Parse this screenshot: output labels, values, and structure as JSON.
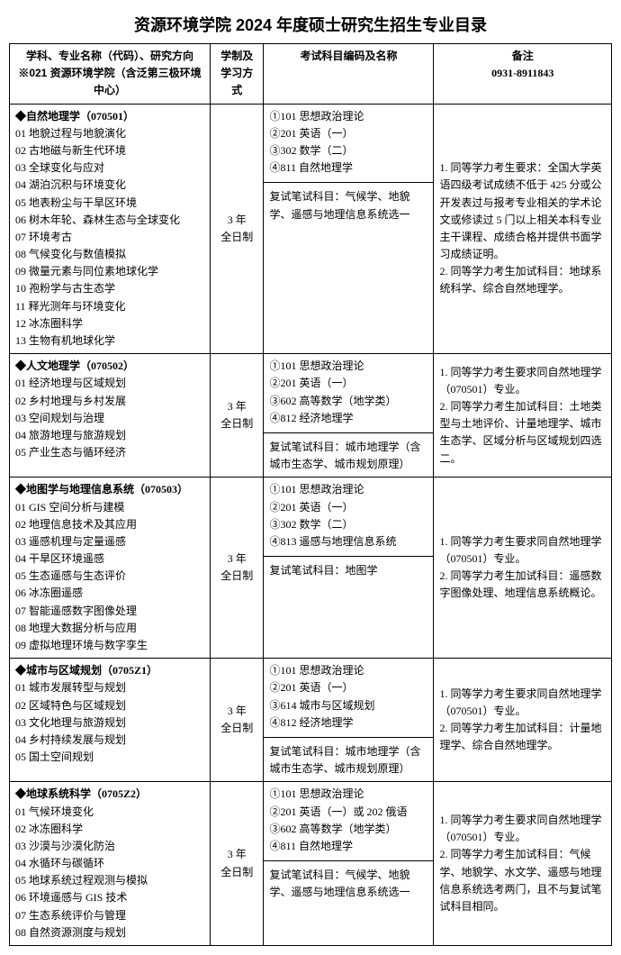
{
  "title": "资源环境学院 2024 年度硕士研究生招生专业目录",
  "header": {
    "col1a": "学科、专业名称（代码）、研究方向",
    "col1b": "※021 资源环境学院（含泛第三极环境中心）",
    "col2": "学制及学习方式",
    "col3": "考试科目编码及名称",
    "col4a": "备注",
    "col4b": "0931-8911843"
  },
  "rows": [
    {
      "name": "自然地理学（070501）",
      "dirs": [
        "01 地貌过程与地貌演化",
        "02 古地磁与新生代环境",
        "03 全球变化与应对",
        "04 湖泊沉积与环境变化",
        "05 地表粉尘与干旱区环境",
        "06 树木年轮、森林生态与全球变化",
        "07 环境考古",
        "08 气候变化与数值模拟",
        "09 微量元素与同位素地球化学",
        "10 孢粉学与古生态学",
        "11 释光测年与环境变化",
        "12 冰冻圈科学",
        "13 生物有机地球化学"
      ],
      "study": "3 年\n全日制",
      "exams": [
        "①101 思想政治理论",
        "②201 英语（一）",
        "③302 数学（二）",
        "④811 自然地理学"
      ],
      "retest": "复试笔试科目：气候学、地貌学、遥感与地理信息系统选一",
      "notes": "1. 同等学力考生要求：全国大学英语四级考试成绩不低于 425 分或公开发表过与报考专业相关的学术论文或修读过 5 门以上相关本科专业主干课程、成绩合格并提供书面学习成绩证明。\n2. 同等学力考生加试科目：地球系统科学、综合自然地理学。"
    },
    {
      "name": "人文地理学（070502）",
      "dirs": [
        "01 经济地理与区域规划",
        "02 乡村地理与乡村发展",
        "03 空间规划与治理",
        "04 旅游地理与旅游规划",
        "05 产业生态与循环经济"
      ],
      "study": "3 年\n全日制",
      "exams": [
        "①101 思想政治理论",
        "②201 英语（一）",
        "③602 高等数学（地学类）",
        "④812 经济地理学"
      ],
      "retest": "复试笔试科目：城市地理学（含城市生态学、城市规划原理）",
      "notes": "1. 同等学力考生要求同自然地理学（070501）专业。\n2. 同等学力考生加试科目：土地类型与土地评价、计量地理学、城市生态学、区域分析与区域规划四选二。"
    },
    {
      "name": "地图学与地理信息系统（070503）",
      "dirs": [
        "01 GIS 空间分析与建模",
        "02 地理信息技术及其应用",
        "03 遥感机理与定量遥感",
        "04 干旱区环境遥感",
        "05 生态遥感与生态评价",
        "06 冰冻圈遥感",
        "07 智能遥感数字图像处理",
        "08 地理大数据分析与应用",
        "09 虚拟地理环境与数字孪生"
      ],
      "study": "3 年\n全日制",
      "exams": [
        "①101 思想政治理论",
        "②201 英语（一）",
        "③302 数学（二）",
        "④813 遥感与地理信息系统"
      ],
      "retest": "复试笔试科目：地图学",
      "notes": "1. 同等学力考生要求同自然地理学（070501）专业。\n2. 同等学力考生加试科目：遥感数字图像处理、地理信息系统概论。"
    },
    {
      "name": "城市与区域规划（0705Z1）",
      "dirs": [
        "01 城市发展转型与规划",
        "02 区域特色与区域规划",
        "03 文化地理与旅游规划",
        "04 乡村持续发展与规划",
        "05 国土空间规划"
      ],
      "study": "3 年\n全日制",
      "exams": [
        "①101 思想政治理论",
        "②201 英语（一）",
        "③614 城市与区域规划",
        "④812 经济地理学"
      ],
      "retest": "复试笔试科目：城市地理学（含城市生态学、城市规划原理）",
      "notes": "1. 同等学力考生要求同自然地理学（070501）专业。\n2. 同等学力考生加试科目：计量地理学、综合自然地理学。"
    },
    {
      "name": "地球系统科学（0705Z2）",
      "dirs": [
        "01 气候环境变化",
        "02 冰冻圈科学",
        "03 沙漠与沙漠化防治",
        "04 水循环与碳循环",
        "05 地球系统过程观测与模拟",
        "06 环境遥感与 GIS 技术",
        "07 生态系统评价与管理",
        "08 自然资源测度与规划"
      ],
      "study": "3 年\n全日制",
      "exams": [
        "①101 思想政治理论",
        "②201 英语（一）或 202 俄语",
        "③602 高等数学（地学类）",
        "④811 自然地理学"
      ],
      "retest": "复试笔试科目：气候学、地貌学、遥感与地理信息系统选一",
      "notes": "1. 同等学力考生要求同自然地理学（070501）专业。\n2. 同等学力考生加试科目：气候学、地貌学、水文学、遥感与地理信息系统选考两门，且不与复试笔试科目相同。"
    }
  ]
}
